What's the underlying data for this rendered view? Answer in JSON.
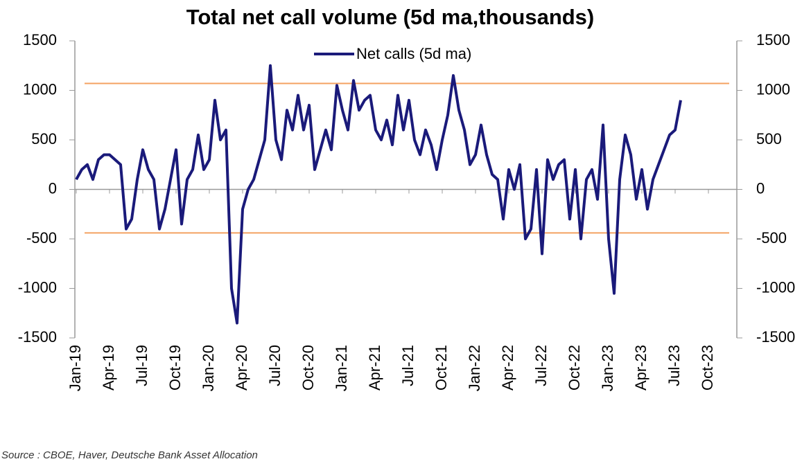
{
  "chart_data": {
    "type": "line",
    "title": "Total net call volume (5d ma,thousands)",
    "source": "Source : CBOE, Haver, Deutsche Bank Asset Allocation",
    "categories": [
      "Jan-19",
      null,
      null,
      null,
      null,
      null,
      "Apr-19",
      null,
      null,
      null,
      null,
      null,
      "Jul-19",
      null,
      null,
      null,
      null,
      null,
      "Oct-19",
      null,
      null,
      null,
      null,
      null,
      "Jan-20",
      null,
      null,
      null,
      null,
      null,
      "Apr-20",
      null,
      null,
      null,
      null,
      null,
      "Jul-20",
      null,
      null,
      null,
      null,
      null,
      "Oct-20",
      null,
      null,
      null,
      null,
      null,
      "Jan-21",
      null,
      null,
      null,
      null,
      null,
      "Apr-21",
      null,
      null,
      null,
      null,
      null,
      "Jul-21",
      null,
      null,
      null,
      null,
      null,
      "Oct-21",
      null,
      null,
      null,
      null,
      null,
      "Jan-22",
      null,
      null,
      null,
      null,
      null,
      "Apr-22",
      null,
      null,
      null,
      null,
      null,
      "Jul-22",
      null,
      null,
      null,
      null,
      null,
      "Oct-22",
      null,
      null,
      null,
      null,
      null,
      "Jan-23",
      null,
      null,
      null,
      null,
      null,
      "Apr-23",
      null,
      null,
      null,
      null,
      null,
      "Jul-23",
      null,
      null,
      null,
      null,
      null,
      "Oct-23",
      null,
      null,
      null,
      null,
      null
    ],
    "series": [
      {
        "name": "Net calls (5d ma)",
        "color": "#1a1a7a",
        "values": [
          100,
          200,
          250,
          100,
          300,
          350,
          350,
          300,
          250,
          -400,
          -300,
          100,
          400,
          200,
          100,
          -400,
          -200,
          100,
          400,
          -350,
          100,
          200,
          550,
          200,
          300,
          900,
          500,
          600,
          -1000,
          -1350,
          -200,
          0,
          100,
          300,
          500,
          1250,
          500,
          300,
          800,
          600,
          950,
          600,
          850,
          200,
          400,
          600,
          400,
          1050,
          800,
          600,
          1100,
          800,
          900,
          950,
          600,
          500,
          700,
          450,
          950,
          600,
          900,
          500,
          350,
          600,
          450,
          200,
          500,
          750,
          1150,
          800,
          600,
          250,
          350,
          650,
          350,
          150,
          100,
          -300,
          200,
          0,
          250,
          -500,
          -400,
          200,
          -650,
          300,
          100,
          250,
          300,
          -300,
          200,
          -500,
          100,
          200,
          -100,
          650,
          -500,
          -1050,
          100,
          550,
          350,
          -100,
          200,
          -200,
          100,
          250,
          400,
          550,
          600,
          900,
          null,
          null,
          null,
          null,
          null,
          null,
          null,
          null,
          null,
          null
        ]
      }
    ],
    "ylim": [
      -1500,
      1500
    ],
    "yticks": [
      -1500,
      -1000,
      -500,
      0,
      500,
      1000,
      1500
    ],
    "y2lim": [
      -1500,
      1500
    ],
    "y2ticks": [
      -1500,
      -1000,
      -500,
      0,
      500,
      1000,
      1500
    ],
    "hlines": [
      1070,
      -440
    ],
    "hline_color": "#f4a261",
    "legend": "top"
  }
}
